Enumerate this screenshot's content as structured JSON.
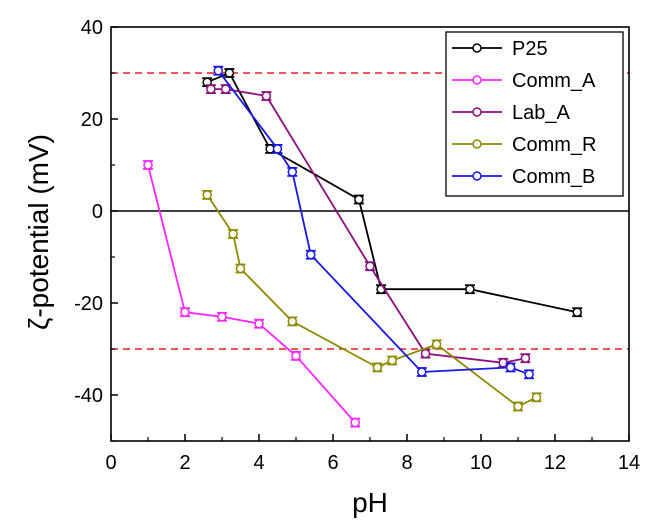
{
  "chart_data": {
    "type": "line",
    "title": "",
    "xlabel": "pH",
    "ylabel": "ζ-potential (mV)",
    "xlim": [
      0,
      14
    ],
    "ylim": [
      -50,
      40
    ],
    "xticks": [
      0,
      2,
      4,
      6,
      8,
      10,
      12,
      14
    ],
    "yticks": [
      -40,
      -20,
      0,
      20,
      40
    ],
    "xtick_labels": [
      "0",
      "2",
      "4",
      "6",
      "8",
      "10",
      "12",
      "14"
    ],
    "ytick_labels": [
      "-40",
      "-20",
      "0",
      "20",
      "40"
    ],
    "grid": false,
    "legend_position": "top-right",
    "reference_lines": [
      {
        "y": 30,
        "style": "dashed",
        "color": "#e8201e"
      },
      {
        "y": -30,
        "style": "dashed",
        "color": "#e8201e"
      },
      {
        "y": 0,
        "style": "solid",
        "color": "#000000"
      }
    ],
    "series": [
      {
        "name": "P25",
        "color": "#000000",
        "x": [
          2.6,
          3.2,
          4.3,
          6.7,
          7.3,
          9.7,
          12.6
        ],
        "y": [
          28,
          30,
          13.5,
          2.5,
          -17,
          -17,
          -22
        ]
      },
      {
        "name": "Comm_A",
        "color": "#ff26ff",
        "x": [
          1.0,
          2.0,
          3.0,
          4.0,
          5.0,
          6.6
        ],
        "y": [
          10,
          -22,
          -23,
          -24.5,
          -31.5,
          -46
        ]
      },
      {
        "name": "Lab_A",
        "color": "#8b0f7f",
        "x": [
          2.7,
          3.1,
          4.2,
          7.0,
          8.5,
          10.6,
          11.2
        ],
        "y": [
          26.5,
          26.5,
          25,
          -12,
          -31,
          -33,
          -32
        ]
      },
      {
        "name": "Comm_R",
        "color": "#8f8b00",
        "x": [
          2.6,
          3.3,
          3.5,
          4.9,
          7.2,
          7.6,
          8.8,
          11.0,
          11.5
        ],
        "y": [
          3.5,
          -5,
          -12.5,
          -24,
          -34,
          -32.5,
          -29,
          -42.5,
          -40.5
        ]
      },
      {
        "name": "Comm_B",
        "color": "#1717e6",
        "x": [
          2.9,
          4.5,
          4.9,
          5.4,
          8.4,
          10.8,
          11.3
        ],
        "y": [
          30.5,
          13.5,
          8.5,
          -9.5,
          -35,
          -34,
          -35.5
        ]
      }
    ]
  }
}
